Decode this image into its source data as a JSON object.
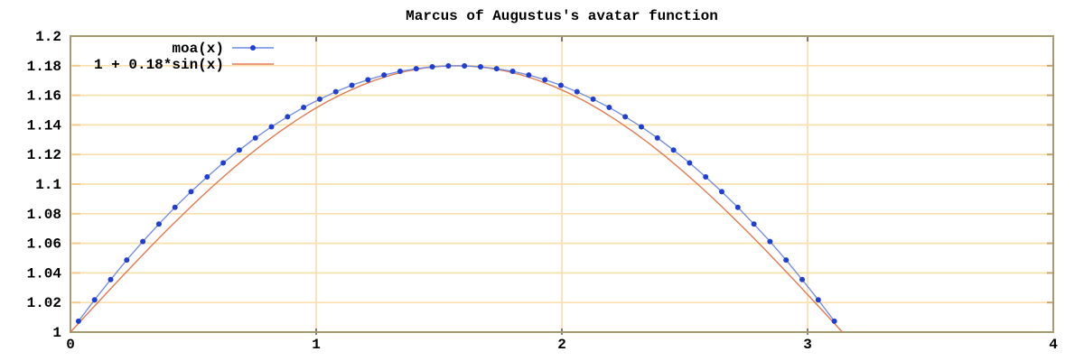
{
  "title": "Marcus of Augustus's avatar function",
  "colors": {
    "background": "#ffffff",
    "border": "#a59b6e",
    "grid": "#f9e0ad",
    "left_tick": "#f4c98a",
    "right_tick": "#cba36f",
    "dark_tick": "#5f5640",
    "text": "#000000",
    "moa_point": "#1f3ed2",
    "moa_line": "#6f8ae2",
    "sin_line": "#e07a52"
  },
  "chart_data": {
    "type": "line",
    "title": "Marcus of Augustus's avatar function",
    "xlabel": "",
    "ylabel": "",
    "xlim": [
      0,
      4
    ],
    "ylim": [
      1,
      1.2
    ],
    "grid": true,
    "legend_position": "top-left",
    "xticks": [
      {
        "value": 0,
        "label": "0"
      },
      {
        "value": 1,
        "label": "1"
      },
      {
        "value": 2,
        "label": "2"
      },
      {
        "value": 3,
        "label": "3"
      },
      {
        "value": 4,
        "label": "4"
      }
    ],
    "yticks": [
      {
        "value": 1.0,
        "label": "1"
      },
      {
        "value": 1.02,
        "label": "1.02"
      },
      {
        "value": 1.04,
        "label": "1.04"
      },
      {
        "value": 1.06,
        "label": "1.06"
      },
      {
        "value": 1.08,
        "label": "1.08"
      },
      {
        "value": 1.1,
        "label": "1.1"
      },
      {
        "value": 1.12,
        "label": "1.12"
      },
      {
        "value": 1.14,
        "label": "1.14"
      },
      {
        "value": 1.16,
        "label": "1.16"
      },
      {
        "value": 1.18,
        "label": "1.18"
      },
      {
        "value": 1.2,
        "label": "1.2"
      }
    ],
    "series": [
      {
        "name": "moa(x)",
        "style": "linespoints",
        "x": [
          0.0327,
          0.0982,
          0.1636,
          0.2291,
          0.2945,
          0.36,
          0.4254,
          0.4909,
          0.5563,
          0.6218,
          0.6872,
          0.7527,
          0.8181,
          0.8836,
          0.949,
          1.0145,
          1.0799,
          1.1454,
          1.2108,
          1.2763,
          1.3417,
          1.4072,
          1.4726,
          1.5381,
          1.6035,
          1.669,
          1.7344,
          1.7999,
          1.8653,
          1.9308,
          1.9962,
          2.0617,
          2.1271,
          2.1926,
          2.258,
          2.3235,
          2.3889,
          2.4544,
          2.5198,
          2.5853,
          2.6507,
          2.7162,
          2.7816,
          2.8471,
          2.9125,
          2.978,
          3.0434,
          3.1089
        ],
        "y": [
          1.0074,
          1.0218,
          1.0355,
          1.0487,
          1.0612,
          1.073,
          1.0843,
          1.0949,
          1.1049,
          1.1143,
          1.123,
          1.1312,
          1.1387,
          1.1455,
          1.1518,
          1.1574,
          1.1624,
          1.1668,
          1.1705,
          1.1737,
          1.1762,
          1.178,
          1.1793,
          1.1799,
          1.1799,
          1.1793,
          1.178,
          1.1762,
          1.1737,
          1.1705,
          1.1668,
          1.1624,
          1.1574,
          1.1518,
          1.1455,
          1.1387,
          1.1312,
          1.123,
          1.1143,
          1.1049,
          1.0949,
          1.0843,
          1.073,
          1.0612,
          1.0487,
          1.0355,
          1.0218,
          1.0074
        ]
      },
      {
        "name": "1 + 0.18*sin(x)",
        "style": "lines",
        "x": [
          0.0,
          0.0654,
          0.1309,
          0.1963,
          0.2618,
          0.3272,
          0.3927,
          0.4581,
          0.5236,
          0.589,
          0.6545,
          0.7199,
          0.7854,
          0.8508,
          0.9163,
          0.9817,
          1.0472,
          1.1126,
          1.1781,
          1.2435,
          1.309,
          1.3744,
          1.4399,
          1.5053,
          1.5708,
          1.6362,
          1.7017,
          1.7671,
          1.8326,
          1.898,
          1.9635,
          2.0289,
          2.0944,
          2.1598,
          2.2253,
          2.2907,
          2.3562,
          2.4216,
          2.4871,
          2.5525,
          2.618,
          2.6834,
          2.7489,
          2.8143,
          2.8798,
          2.9452,
          3.0107,
          3.0761,
          3.1416
        ],
        "y": [
          1.0,
          1.0118,
          1.0235,
          1.0351,
          1.0466,
          1.0579,
          1.0689,
          1.0796,
          1.09,
          1.1,
          1.1096,
          1.1187,
          1.1273,
          1.1353,
          1.1428,
          1.1497,
          1.1559,
          1.1614,
          1.1663,
          1.1704,
          1.1739,
          1.1765,
          1.1785,
          1.1796,
          1.18,
          1.1796,
          1.1785,
          1.1765,
          1.1739,
          1.1704,
          1.1663,
          1.1614,
          1.1559,
          1.1497,
          1.1428,
          1.1353,
          1.1273,
          1.1187,
          1.1096,
          1.1,
          1.09,
          1.0796,
          1.0689,
          1.0579,
          1.0466,
          1.0351,
          1.0235,
          1.0118,
          1.0
        ]
      }
    ]
  }
}
